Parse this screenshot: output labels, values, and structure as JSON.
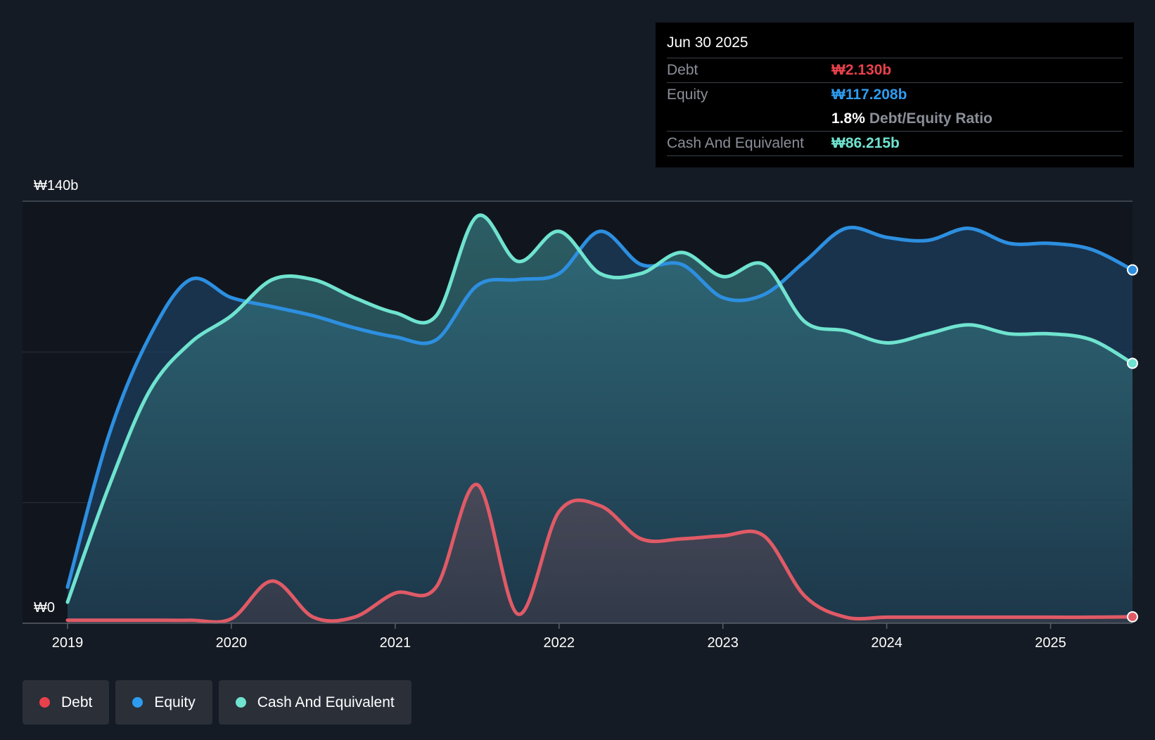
{
  "colors": {
    "background": "#151b24",
    "plot_background": "#11161e",
    "debt": "#e05a66",
    "equity": "#2d8fe0",
    "cash": "#6fe3cf",
    "debt_value_text": "#e8414c",
    "equity_value_text": "#2d9cf0",
    "cash_value_text": "#6fe3cf"
  },
  "tooltip": {
    "date": "Jun 30 2025",
    "debt_label": "Debt",
    "debt_value": "₩2.130b",
    "equity_label": "Equity",
    "equity_value": "₩117.208b",
    "ratio_value": "1.8%",
    "ratio_label": "Debt/Equity Ratio",
    "cash_label": "Cash And Equivalent",
    "cash_value": "₩86.215b"
  },
  "legend": [
    {
      "label": "Debt",
      "color": "#e8414c"
    },
    {
      "label": "Equity",
      "color": "#2d9cf0"
    },
    {
      "label": "Cash And Equivalent",
      "color": "#6fe3cf"
    }
  ],
  "chart_data": {
    "type": "area",
    "title": "",
    "xlabel": "",
    "ylabel": "",
    "y_axis_labels": [
      "₩140b",
      "₩0"
    ],
    "ylim": [
      0,
      140
    ],
    "xlim": [
      2019.0,
      2025.5
    ],
    "x_ticks": [
      "2019",
      "2020",
      "2021",
      "2022",
      "2023",
      "2024",
      "2025"
    ],
    "grid": true,
    "legend_position": "bottom-left",
    "series": [
      {
        "name": "Equity",
        "points": [
          [
            2019.0,
            12
          ],
          [
            2019.25,
            62
          ],
          [
            2019.5,
            95
          ],
          [
            2019.75,
            114
          ],
          [
            2020.0,
            108
          ],
          [
            2020.25,
            105
          ],
          [
            2020.5,
            102
          ],
          [
            2020.75,
            98
          ],
          [
            2021.0,
            95
          ],
          [
            2021.25,
            94
          ],
          [
            2021.5,
            112
          ],
          [
            2021.75,
            114
          ],
          [
            2022.0,
            116
          ],
          [
            2022.25,
            130
          ],
          [
            2022.5,
            119
          ],
          [
            2022.75,
            119
          ],
          [
            2023.0,
            108
          ],
          [
            2023.25,
            109
          ],
          [
            2023.5,
            120
          ],
          [
            2023.75,
            131
          ],
          [
            2024.0,
            128
          ],
          [
            2024.25,
            127
          ],
          [
            2024.5,
            131
          ],
          [
            2024.75,
            126
          ],
          [
            2025.0,
            126
          ],
          [
            2025.25,
            124
          ],
          [
            2025.5,
            117.208
          ]
        ]
      },
      {
        "name": "Cash And Equivalent",
        "points": [
          [
            2019.0,
            7
          ],
          [
            2019.25,
            45
          ],
          [
            2019.5,
            77
          ],
          [
            2019.75,
            93
          ],
          [
            2020.0,
            102
          ],
          [
            2020.25,
            114
          ],
          [
            2020.5,
            114
          ],
          [
            2020.75,
            108
          ],
          [
            2021.0,
            103
          ],
          [
            2021.25,
            102
          ],
          [
            2021.5,
            135
          ],
          [
            2021.75,
            120
          ],
          [
            2022.0,
            130
          ],
          [
            2022.25,
            116
          ],
          [
            2022.5,
            116
          ],
          [
            2022.75,
            123
          ],
          [
            2023.0,
            115
          ],
          [
            2023.25,
            119
          ],
          [
            2023.5,
            100
          ],
          [
            2023.75,
            97
          ],
          [
            2024.0,
            93
          ],
          [
            2024.25,
            96
          ],
          [
            2024.5,
            99
          ],
          [
            2024.75,
            96
          ],
          [
            2025.0,
            96
          ],
          [
            2025.25,
            94
          ],
          [
            2025.5,
            86.215
          ]
        ]
      },
      {
        "name": "Debt",
        "points": [
          [
            2019.0,
            1
          ],
          [
            2019.25,
            1
          ],
          [
            2019.5,
            1
          ],
          [
            2019.75,
            1
          ],
          [
            2020.0,
            1.5
          ],
          [
            2020.25,
            14
          ],
          [
            2020.5,
            2
          ],
          [
            2020.75,
            2
          ],
          [
            2021.0,
            10
          ],
          [
            2021.25,
            12
          ],
          [
            2021.5,
            46
          ],
          [
            2021.75,
            3
          ],
          [
            2022.0,
            37
          ],
          [
            2022.25,
            39
          ],
          [
            2022.5,
            28
          ],
          [
            2022.75,
            28
          ],
          [
            2023.0,
            29
          ],
          [
            2023.25,
            29
          ],
          [
            2023.5,
            9
          ],
          [
            2023.75,
            2
          ],
          [
            2024.0,
            2
          ],
          [
            2024.25,
            2
          ],
          [
            2024.5,
            2
          ],
          [
            2024.75,
            2
          ],
          [
            2025.0,
            2
          ],
          [
            2025.25,
            2
          ],
          [
            2025.5,
            2.13
          ]
        ]
      }
    ]
  }
}
